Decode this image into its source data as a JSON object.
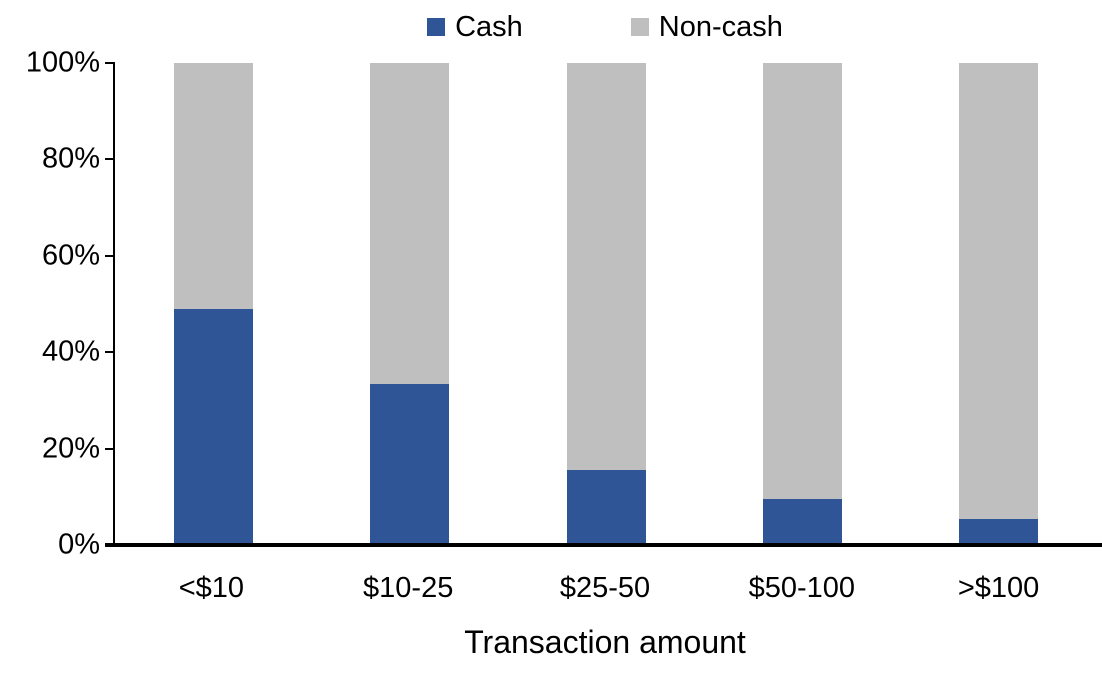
{
  "chart_data": {
    "type": "bar",
    "stacked": true,
    "title": "",
    "xlabel": "Transaction amount",
    "ylabel": "",
    "ylim": [
      0,
      100
    ],
    "grid": false,
    "legend_position": "top-center",
    "categories": [
      "<$10",
      "$10-25",
      "$25-50",
      "$50-100",
      ">$100"
    ],
    "series": [
      {
        "name": "Cash",
        "color": "#2F5597",
        "values": [
          49,
          33.5,
          15.5,
          9.5,
          5.5
        ]
      },
      {
        "name": "Non-cash",
        "color": "#BFBFBF",
        "values": [
          51,
          66.5,
          84.5,
          90.5,
          94.5
        ]
      }
    ],
    "yticks": [
      {
        "value": 0,
        "label": "0%"
      },
      {
        "value": 20,
        "label": "20%"
      },
      {
        "value": 40,
        "label": "40%"
      },
      {
        "value": 60,
        "label": "60%"
      },
      {
        "value": 80,
        "label": "80%"
      },
      {
        "value": 100,
        "label": "100%"
      }
    ],
    "axis_color": "#000000",
    "background_color": "#FFFFFF"
  }
}
